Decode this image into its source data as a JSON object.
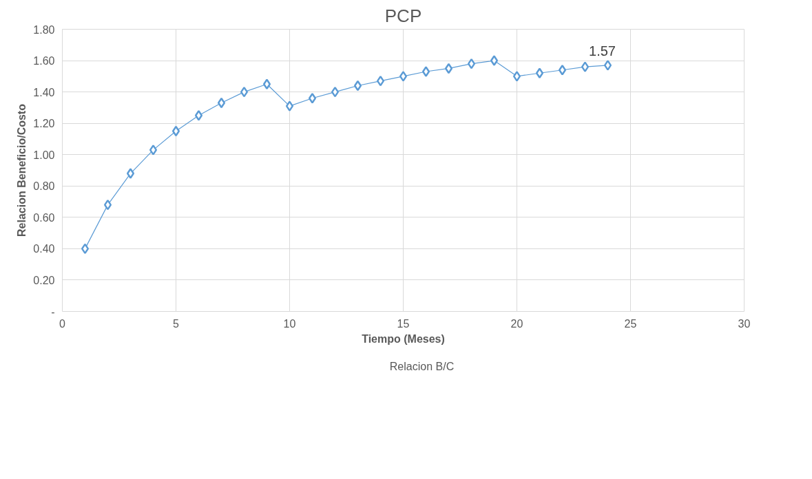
{
  "chart_data": {
    "type": "line",
    "title": "PCP",
    "xlabel": "Tiempo (Meses)",
    "ylabel": "Relacion Beneficio/Costo",
    "x": [
      1,
      2,
      3,
      4,
      5,
      6,
      7,
      8,
      9,
      10,
      11,
      12,
      13,
      14,
      15,
      16,
      17,
      18,
      19,
      20,
      21,
      22,
      23,
      24
    ],
    "series": [
      {
        "name": "Relacion B/C",
        "color": "#5b9bd5",
        "values": [
          0.4,
          0.68,
          0.88,
          1.03,
          1.15,
          1.25,
          1.33,
          1.4,
          1.45,
          1.31,
          1.36,
          1.4,
          1.44,
          1.47,
          1.5,
          1.53,
          1.55,
          1.58,
          1.6,
          1.5,
          1.52,
          1.54,
          1.56,
          1.57
        ],
        "value_labels": [
          null,
          null,
          null,
          null,
          null,
          null,
          null,
          null,
          null,
          null,
          null,
          null,
          null,
          null,
          null,
          null,
          null,
          null,
          null,
          null,
          null,
          null,
          null,
          "1.57"
        ]
      }
    ],
    "xlim": [
      0,
      30
    ],
    "xticks": [
      0,
      5,
      10,
      15,
      20,
      25,
      30
    ],
    "ylim": [
      0,
      1.8
    ],
    "yticks": [
      {
        "value": 0,
        "label": "-"
      },
      {
        "value": 0.2,
        "label": "0.20"
      },
      {
        "value": 0.4,
        "label": "0.40"
      },
      {
        "value": 0.6,
        "label": "0.60"
      },
      {
        "value": 0.8,
        "label": "0.80"
      },
      {
        "value": 1.0,
        "label": "1.00"
      },
      {
        "value": 1.2,
        "label": "1.20"
      },
      {
        "value": 1.4,
        "label": "1.40"
      },
      {
        "value": 1.6,
        "label": "1.60"
      },
      {
        "value": 1.8,
        "label": "1.80"
      }
    ],
    "grid": true,
    "legend": "bottom",
    "marker": "diamond",
    "line_style": "solid"
  }
}
